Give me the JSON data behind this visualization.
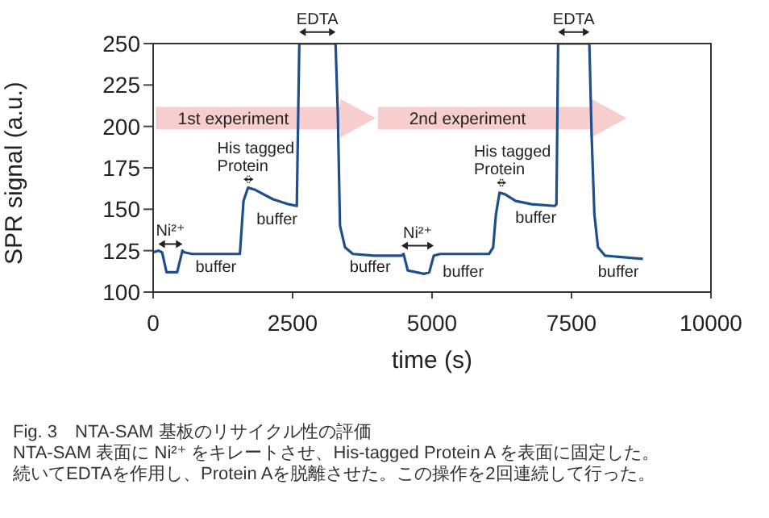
{
  "chart_data": {
    "type": "line",
    "title": "Fig. 3　NTA-SAM 基板のリサイクル性の評価",
    "subtitle": "NTA-SAM 表面に Ni²⁺ をキレートさせ、His-tagged Protein A を表面に固定した。続いてEDTAを作用し、Protein Aを脱離させた。この操作を2回連続して行った。",
    "xlabel": "time (s)",
    "ylabel": "SPR signal (a.u.)",
    "xlim": [
      0,
      10000
    ],
    "xticks": [
      0,
      2500,
      5000,
      7500,
      10000
    ],
    "ylim": [
      100,
      250
    ],
    "yticks": [
      100,
      125,
      150,
      175,
      200,
      225,
      250
    ],
    "grid": false,
    "marker": "none",
    "line_style": "solid",
    "x": [
      0,
      95,
      160,
      240,
      430,
      525,
      560,
      700,
      1000,
      1555,
      1620,
      1700,
      1810,
      2150,
      2430,
      2575,
      2620,
      3270,
      3310,
      3350,
      3440,
      3580,
      3960,
      4450,
      4490,
      4565,
      4855,
      4950,
      5030,
      5145,
      6020,
      6095,
      6145,
      6210,
      6310,
      6500,
      6790,
      7200,
      7230,
      7260,
      7820,
      7860,
      7910,
      7975,
      8100,
      8780
    ],
    "series": [
      {
        "color": "#1f4e8c",
        "values": [
          124,
          125,
          124,
          112,
          112,
          125,
          124,
          123,
          123,
          123,
          155,
          163,
          162,
          156,
          153,
          152,
          250,
          250,
          208,
          140,
          127,
          123,
          122,
          122,
          123,
          113,
          111,
          112,
          122,
          123,
          123,
          127,
          147,
          160,
          159,
          155,
          153,
          152,
          153,
          250,
          250,
          195,
          147,
          127,
          122,
          120
        ]
      }
    ],
    "annotations": [
      "1st experiment",
      "2nd experiment",
      "Ni²⁺",
      "His tagged\nProtein",
      "EDTA",
      "Ni²⁺",
      "His tagged\nProtein",
      "EDTA",
      "buffer",
      "buffer",
      "buffer",
      "buffer",
      "buffer",
      "buffer"
    ]
  }
}
